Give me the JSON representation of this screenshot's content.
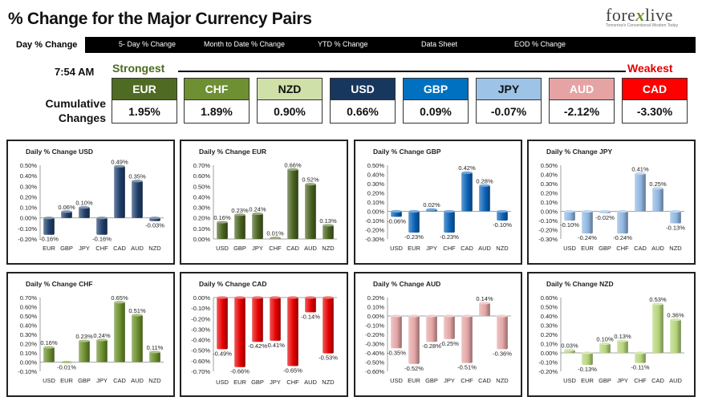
{
  "header": {
    "title": "% Change for the Major Currency Pairs",
    "logo_prefix": "fore",
    "logo_x": "x",
    "logo_suffix": "live",
    "logo_tagline": "Tomorrow's Conventional Wisdom Today"
  },
  "tabs": [
    {
      "label": "Day % Change",
      "active": true
    },
    {
      "label": "5- Day % Change",
      "active": false
    },
    {
      "label": "Month to Date % Change",
      "active": false
    },
    {
      "label": "YTD % Change",
      "active": false
    },
    {
      "label": "Data Sheet",
      "active": false
    },
    {
      "label": "EOD % Change",
      "active": false
    }
  ],
  "summary": {
    "time": "7:54 AM",
    "strongest_label": "Strongest",
    "weakest_label": "Weakest",
    "cumulative_label_line1": "Cumulative",
    "cumulative_label_line2": "Changes",
    "currencies": [
      {
        "code": "EUR",
        "value": "1.95%",
        "color": "#4f6b23",
        "text_color": "#ffffff"
      },
      {
        "code": "CHF",
        "value": "1.89%",
        "color": "#6f8f33",
        "text_color": "#ffffff"
      },
      {
        "code": "NZD",
        "value": "0.90%",
        "color": "#cfe0a9",
        "text_color": "#111111"
      },
      {
        "code": "USD",
        "value": "0.66%",
        "color": "#17375e",
        "text_color": "#ffffff"
      },
      {
        "code": "GBP",
        "value": "0.09%",
        "color": "#0070c0",
        "text_color": "#ffffff"
      },
      {
        "code": "JPY",
        "value": "-0.07%",
        "color": "#9dc3e6",
        "text_color": "#111111"
      },
      {
        "code": "AUD",
        "value": "-2.12%",
        "color": "#e6a3a3",
        "text_color": "#ffffff"
      },
      {
        "code": "CAD",
        "value": "-3.30%",
        "color": "#ff0000",
        "text_color": "#ffffff"
      }
    ]
  },
  "chart_data": [
    {
      "type": "bar",
      "title": "Daily % Change USD",
      "categories": [
        "EUR",
        "GBP",
        "JPY",
        "CHF",
        "CAD",
        "AUD",
        "NZD"
      ],
      "values": [
        -0.16,
        0.06,
        0.1,
        -0.16,
        0.49,
        0.35,
        -0.03
      ],
      "labels": [
        "-0.16%",
        "0.06%",
        "0.10%",
        "-0.16%",
        "0.49%",
        "0.35%",
        "-0.03%"
      ],
      "yticks": [
        "0.50%",
        "0.40%",
        "0.30%",
        "0.20%",
        "0.10%",
        "0.00%",
        "-0.10%",
        "-0.20%"
      ],
      "ylim": [
        -0.2,
        0.5
      ],
      "color": "#1f3f6b"
    },
    {
      "type": "bar",
      "title": "Daily % Change EUR",
      "categories": [
        "USD",
        "GBP",
        "JPY",
        "CHF",
        "CAD",
        "AUD",
        "NZD"
      ],
      "values": [
        0.16,
        0.23,
        0.24,
        0.01,
        0.66,
        0.52,
        0.13
      ],
      "labels": [
        "0.16%",
        "0.23%",
        "0.24%",
        "0.01%",
        "0.66%",
        "0.52%",
        "0.13%"
      ],
      "yticks": [
        "0.70%",
        "0.60%",
        "0.50%",
        "0.40%",
        "0.30%",
        "0.20%",
        "0.10%",
        "0.00%"
      ],
      "ylim": [
        0,
        0.7
      ],
      "color": "#4a6320"
    },
    {
      "type": "bar",
      "title": "Daily % Change GBP",
      "categories": [
        "USD",
        "EUR",
        "JPY",
        "CHF",
        "CAD",
        "AUD",
        "NZD"
      ],
      "values": [
        -0.06,
        -0.23,
        0.02,
        -0.23,
        0.42,
        0.28,
        -0.1
      ],
      "labels": [
        "-0.06%",
        "-0.23%",
        "0.02%",
        "-0.23%",
        "0.42%",
        "0.28%",
        "-0.10%"
      ],
      "yticks": [
        "0.50%",
        "0.40%",
        "0.30%",
        "0.20%",
        "0.10%",
        "0.00%",
        "-0.10%",
        "-0.20%",
        "-0.30%"
      ],
      "ylim": [
        -0.3,
        0.5
      ],
      "color": "#0b63b6"
    },
    {
      "type": "bar",
      "title": "Daily % Change JPY",
      "categories": [
        "USD",
        "EUR",
        "GBP",
        "CHF",
        "CAD",
        "AUD",
        "NZD"
      ],
      "values": [
        -0.1,
        -0.24,
        -0.02,
        -0.24,
        0.41,
        0.25,
        -0.13
      ],
      "labels": [
        "-0.10%",
        "-0.24%",
        "-0.02%",
        "-0.24%",
        "0.41%",
        "0.25%",
        "-0.13%"
      ],
      "yticks": [
        "0.50%",
        "0.40%",
        "0.30%",
        "0.20%",
        "0.10%",
        "0.00%",
        "-0.10%",
        "-0.20%",
        "-0.30%"
      ],
      "ylim": [
        -0.3,
        0.5
      ],
      "color": "#8fb6e0"
    },
    {
      "type": "bar",
      "title": "Daily % Change CHF",
      "categories": [
        "USD",
        "EUR",
        "GBP",
        "JPY",
        "CAD",
        "AUD",
        "NZD"
      ],
      "values": [
        0.16,
        -0.01,
        0.23,
        0.24,
        0.65,
        0.51,
        0.11
      ],
      "labels": [
        "0.16%",
        "-0.01%",
        "0.23%",
        "0.24%",
        "0.65%",
        "0.51%",
        "0.11%"
      ],
      "yticks": [
        "0.70%",
        "0.60%",
        "0.50%",
        "0.40%",
        "0.30%",
        "0.20%",
        "0.10%",
        "0.00%",
        "-0.10%"
      ],
      "ylim": [
        -0.1,
        0.7
      ],
      "color": "#6b8f2c"
    },
    {
      "type": "bar",
      "title": "Daily % Change CAD",
      "categories": [
        "USD",
        "EUR",
        "GBP",
        "JPY",
        "CHF",
        "AUD",
        "NZD"
      ],
      "values": [
        -0.49,
        -0.66,
        -0.42,
        -0.41,
        -0.65,
        -0.14,
        -0.53
      ],
      "labels": [
        "-0.49%",
        "-0.66%",
        "-0.42%",
        "-0.41%",
        "-0.65%",
        "-0.14%",
        "-0.53%"
      ],
      "yticks": [
        "0.00%",
        "-0.10%",
        "-0.20%",
        "-0.30%",
        "-0.40%",
        "-0.50%",
        "-0.60%",
        "-0.70%"
      ],
      "ylim": [
        -0.7,
        0
      ],
      "color": "#e60000",
      "top_axis": true
    },
    {
      "type": "bar",
      "title": "Daily % Change AUD",
      "categories": [
        "USD",
        "EUR",
        "GBP",
        "JPY",
        "CHF",
        "CAD",
        "NZD"
      ],
      "values": [
        -0.35,
        -0.52,
        -0.28,
        -0.25,
        -0.51,
        0.14,
        -0.36
      ],
      "labels": [
        "-0.35%",
        "-0.52%",
        "-0.28%",
        "-0.25%",
        "-0.51%",
        "0.14%",
        "-0.36%"
      ],
      "yticks": [
        "0.20%",
        "0.10%",
        "0.00%",
        "-0.10%",
        "-0.20%",
        "-0.30%",
        "-0.40%",
        "-0.50%",
        "-0.60%"
      ],
      "ylim": [
        -0.6,
        0.2
      ],
      "color": "#e4a5a5"
    },
    {
      "type": "bar",
      "title": "Daily % Change NZD",
      "categories": [
        "USD",
        "EUR",
        "GBP",
        "JPY",
        "CHF",
        "CAD",
        "AUD"
      ],
      "values": [
        0.03,
        -0.13,
        0.1,
        0.13,
        -0.11,
        0.53,
        0.36
      ],
      "labels": [
        "0.03%",
        "-0.13%",
        "0.10%",
        "0.13%",
        "-0.11%",
        "0.53%",
        "0.36%"
      ],
      "yticks": [
        "0.60%",
        "0.50%",
        "0.40%",
        "0.30%",
        "0.20%",
        "0.10%",
        "0.00%",
        "-0.10%",
        "-0.20%"
      ],
      "ylim": [
        -0.2,
        0.6
      ],
      "color": "#b5d47a"
    }
  ]
}
